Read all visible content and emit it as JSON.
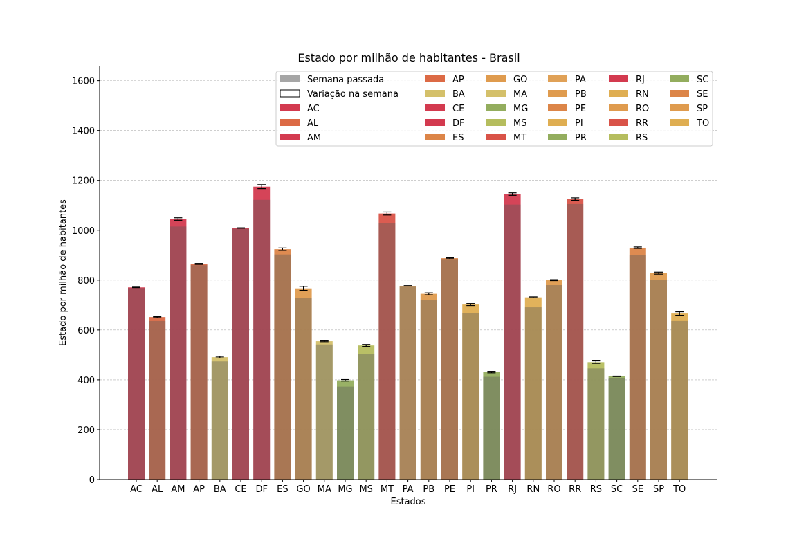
{
  "chart_data": {
    "type": "bar",
    "title": "Estado por milhão de habitantes - Brasil",
    "xlabel": "Estados",
    "ylabel": "Estado por milhão de habitantes",
    "ylim": [
      0,
      1660
    ],
    "yticks": [
      0,
      200,
      400,
      600,
      800,
      1000,
      1200,
      1400,
      1600
    ],
    "grid": "horizontal",
    "legend_placement": "top-right",
    "legend_fixed": [
      {
        "label": "Semana passada",
        "color": "#a6a6a6",
        "outline": false
      },
      {
        "label": "Variação na semana",
        "color": "#ffffff",
        "outline": true
      }
    ],
    "categories": [
      "AC",
      "AL",
      "AM",
      "AP",
      "BA",
      "CE",
      "DF",
      "ES",
      "GO",
      "MA",
      "MG",
      "MS",
      "MT",
      "PA",
      "PB",
      "PE",
      "PI",
      "PR",
      "RJ",
      "RN",
      "RO",
      "RR",
      "RS",
      "SC",
      "SE",
      "SP",
      "TO"
    ],
    "last_week": [
      768,
      636,
      1015,
      860,
      474,
      1006,
      1122,
      903,
      729,
      542,
      373,
      505,
      1028,
      774,
      720,
      882,
      668,
      412,
      1103,
      691,
      780,
      1105,
      446,
      406,
      902,
      800,
      636
    ],
    "current": [
      771,
      652,
      1045,
      865,
      491,
      1009,
      1175,
      924,
      767,
      555,
      398,
      538,
      1067,
      777,
      745,
      888,
      702,
      431,
      1145,
      731,
      800,
      1125,
      471,
      414,
      930,
      828,
      666
    ],
    "error": [
      1,
      2,
      5,
      2,
      3,
      1,
      8,
      5,
      8,
      2,
      3,
      4,
      6,
      1,
      4,
      2,
      4,
      3,
      5,
      2,
      2,
      5,
      5,
      1,
      3,
      4,
      7
    ],
    "colors": [
      "#d33a4f",
      "#dc6a45",
      "#d33a4f",
      "#dc6a45",
      "#d4c06a",
      "#d33a4f",
      "#d33a4f",
      "#dc8548",
      "#df9b4e",
      "#d4c06a",
      "#93ad5e",
      "#b5bd5e",
      "#d95348",
      "#e0a157",
      "#df9b4e",
      "#dc8548",
      "#dfae52",
      "#93ad5e",
      "#d33a4f",
      "#dfae52",
      "#df9b4e",
      "#d95348",
      "#b5bd5e",
      "#93ad5e",
      "#dc8548",
      "#df9b4e",
      "#dfae52"
    ]
  }
}
